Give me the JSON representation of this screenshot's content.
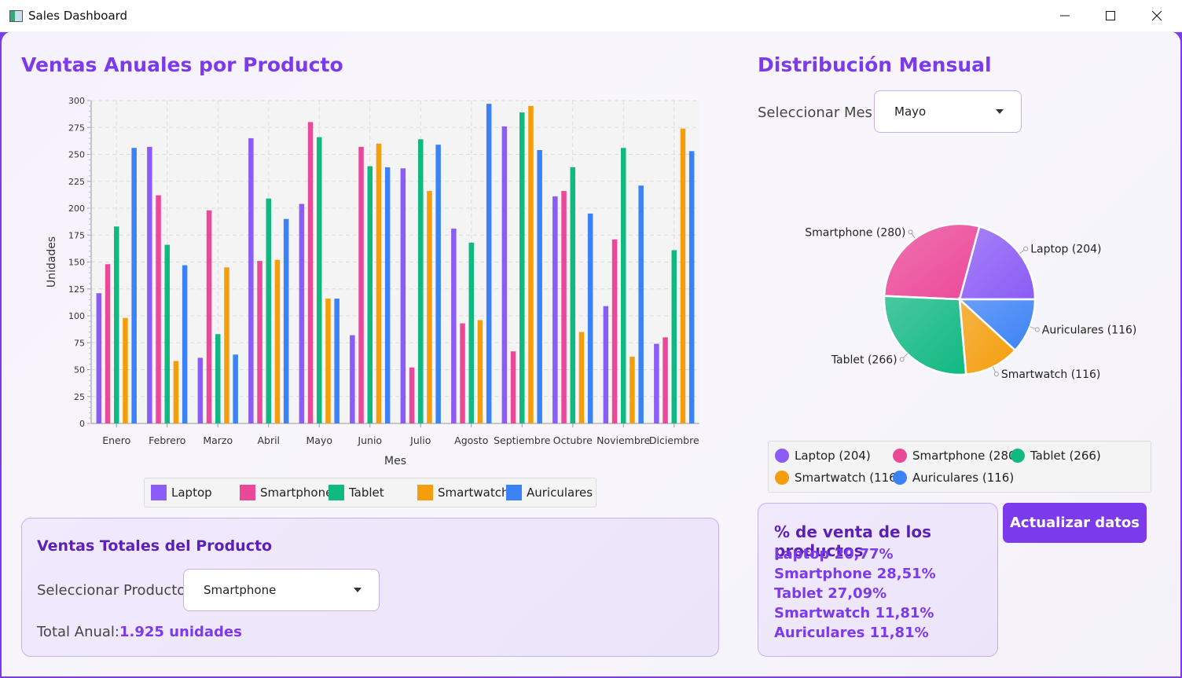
{
  "window": {
    "title": "Sales Dashboard"
  },
  "left": {
    "title": "Ventas Anuales por Producto"
  },
  "right": {
    "title": "Distribución Mensual",
    "month_label": "Seleccionar Mes:",
    "month_value": "Mayo"
  },
  "colors": {
    "Laptop": "#8b5cf6",
    "Smartphone": "#ec4899",
    "Tablet": "#10b981",
    "Smartwatch": "#f59e0b",
    "Auriculares": "#3b82f6",
    "accent": "#7c3aed"
  },
  "chart_data": [
    {
      "type": "bar",
      "xlabel": "Mes",
      "ylabel": "Unidades",
      "ylim": [
        0,
        300
      ],
      "yticks": [
        0,
        25,
        50,
        75,
        100,
        125,
        150,
        175,
        200,
        225,
        250,
        275,
        300
      ],
      "grid": true,
      "legend": "bottom",
      "categories": [
        "Enero",
        "Febrero",
        "Marzo",
        "Abril",
        "Mayo",
        "Junio",
        "Julio",
        "Agosto",
        "Septiembre",
        "Octubre",
        "Noviembre",
        "Diciembre"
      ],
      "series": [
        {
          "name": "Laptop",
          "values": [
            121,
            257,
            61,
            265,
            204,
            82,
            237,
            181,
            276,
            211,
            109,
            74
          ]
        },
        {
          "name": "Smartphone",
          "values": [
            148,
            212,
            198,
            151,
            280,
            257,
            52,
            93,
            67,
            216,
            171,
            80
          ]
        },
        {
          "name": "Tablet",
          "values": [
            183,
            166,
            83,
            209,
            266,
            239,
            264,
            168,
            289,
            238,
            256,
            161
          ]
        },
        {
          "name": "Smartwatch",
          "values": [
            98,
            58,
            145,
            152,
            116,
            260,
            216,
            96,
            295,
            85,
            62,
            274
          ]
        },
        {
          "name": "Auriculares",
          "values": [
            256,
            147,
            64,
            190,
            116,
            238,
            259,
            297,
            254,
            195,
            221,
            253
          ]
        }
      ]
    },
    {
      "type": "pie",
      "slices": [
        {
          "name": "Laptop",
          "value": 204,
          "label": "Laptop (204)"
        },
        {
          "name": "Smartphone",
          "value": 280,
          "label": "Smartphone (280)"
        },
        {
          "name": "Tablet",
          "value": 266,
          "label": "Tablet (266)"
        },
        {
          "name": "Smartwatch",
          "value": 116,
          "label": "Smartwatch (116)"
        },
        {
          "name": "Auriculares",
          "value": 116,
          "label": "Auriculares (116)"
        }
      ]
    }
  ],
  "pie_legend": [
    "Laptop (204)",
    "Smartphone (280)",
    "Tablet (266)",
    "Smartwatch (116)",
    "Auriculares (116)"
  ],
  "product_card": {
    "title": "Ventas Totales del Producto",
    "select_label": "Seleccionar Producto:",
    "select_value": "Smartphone",
    "total_label": "Total Anual:",
    "total_value": "1.925 unidades"
  },
  "pct_card": {
    "title": "% de venta de los productos",
    "lines": [
      "Laptop 20,77%",
      "Smartphone 28,51%",
      "Tablet 27,09%",
      "Smartwatch 11,81%",
      "Auriculares 11,81%"
    ]
  },
  "update_button": "Actualizar datos"
}
